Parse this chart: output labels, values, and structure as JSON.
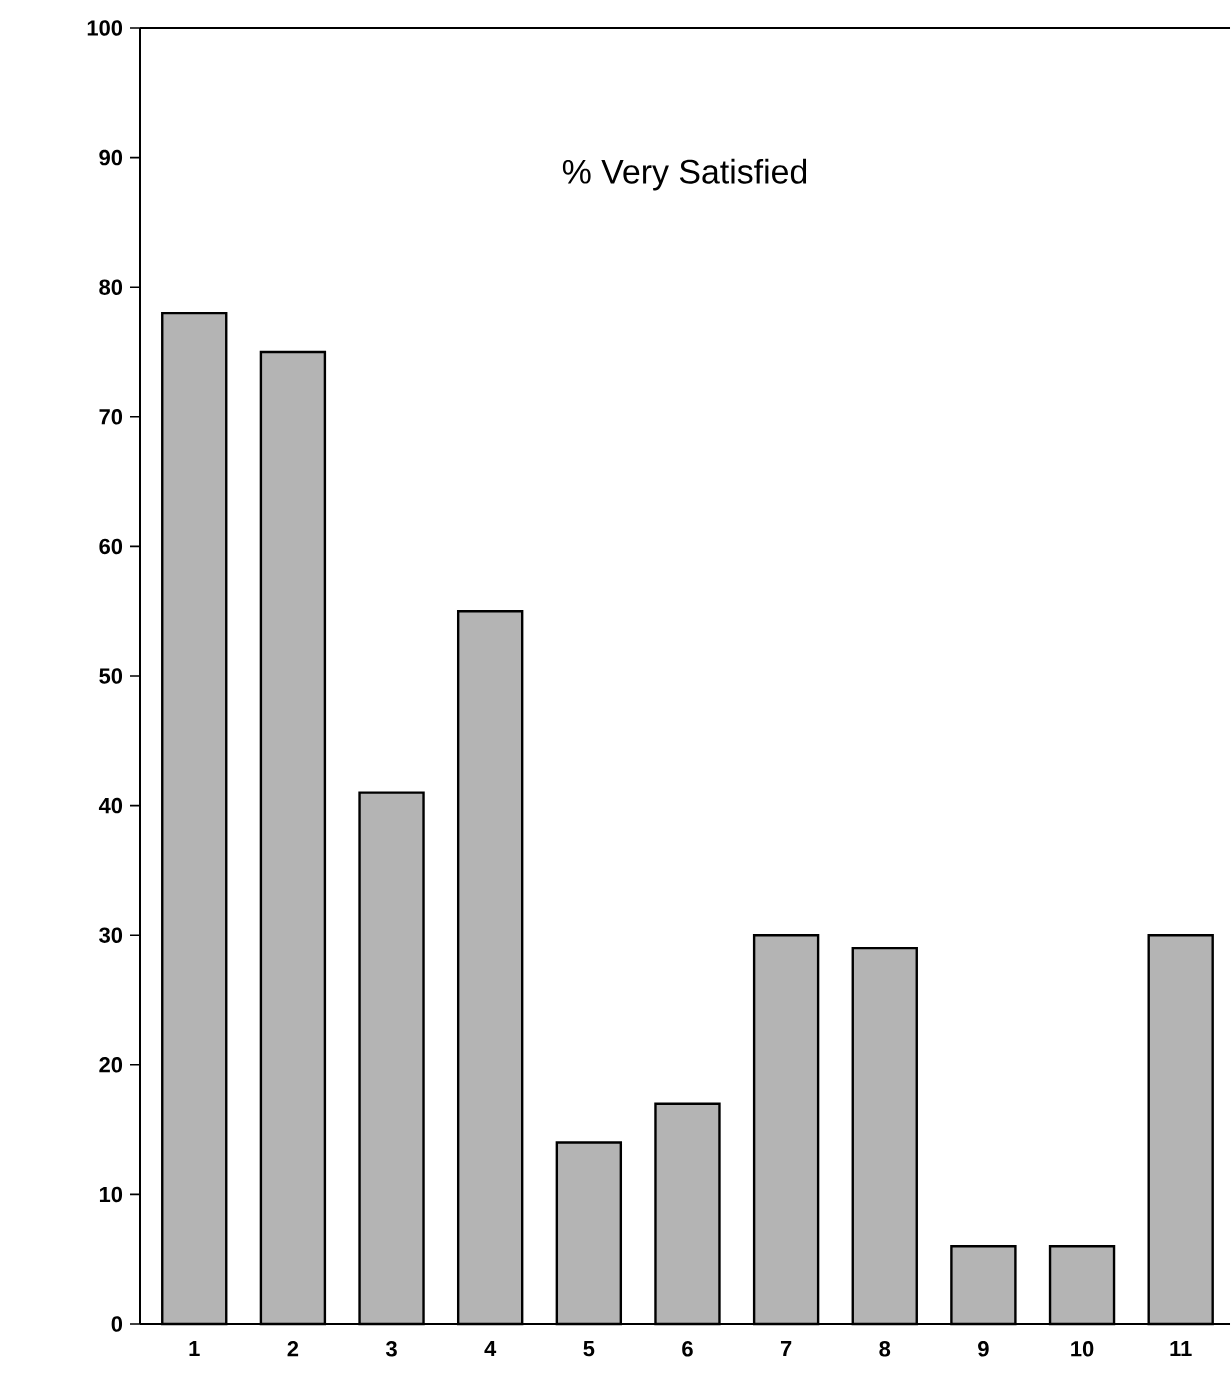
{
  "chart_data": {
    "type": "bar",
    "title": "% Very Satisfied",
    "categories": [
      "1",
      "2",
      "3",
      "4",
      "5",
      "6",
      "7",
      "8",
      "9",
      "10",
      "11"
    ],
    "values": [
      78,
      75,
      41,
      55,
      14,
      17,
      30,
      29,
      6,
      6,
      30
    ],
    "color": "#b4b4b4",
    "ylim": [
      0,
      100
    ],
    "yticks": [
      0,
      10,
      20,
      30,
      40,
      50,
      60,
      70,
      80,
      90,
      100
    ],
    "grid": false
  }
}
